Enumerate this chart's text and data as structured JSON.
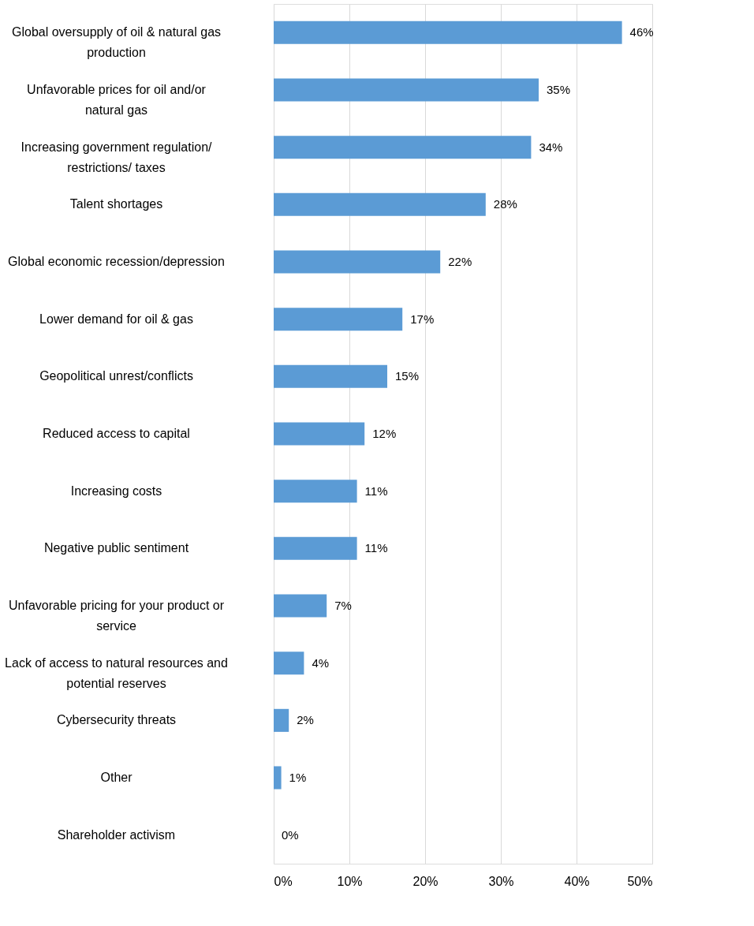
{
  "chart_data": {
    "type": "bar",
    "orientation": "horizontal",
    "categories": [
      "Global oversupply of oil & natural gas production",
      "Unfavorable prices for oil and/or natural gas",
      "Increasing government regulation/ restrictions/ taxes",
      "Talent shortages",
      "Global economic recession/depression",
      "Lower demand for oil & gas",
      "Geopolitical unrest/conflicts",
      "Reduced access to capital",
      "Increasing costs",
      "Negative public sentiment",
      "Unfavorable pricing for your product or service",
      "Lack of access to natural resources and potential reserves",
      "Cybersecurity threats",
      "Other",
      "Shareholder activism"
    ],
    "values": [
      46,
      35,
      34,
      28,
      22,
      17,
      15,
      12,
      11,
      11,
      7,
      4,
      2,
      1,
      0
    ],
    "value_labels": [
      "46%",
      "35%",
      "34%",
      "28%",
      "22%",
      "17%",
      "15%",
      "12%",
      "11%",
      "11%",
      "7%",
      "4%",
      "2%",
      "1%",
      "0%"
    ],
    "color": "#5b9bd5",
    "xlim": [
      0,
      50
    ],
    "xticks": [
      {
        "value": 0,
        "label": "0%"
      },
      {
        "value": 10,
        "label": "10%"
      },
      {
        "value": 20,
        "label": "20%"
      },
      {
        "value": 30,
        "label": "30%"
      },
      {
        "value": 40,
        "label": "40%"
      },
      {
        "value": 50,
        "label": "50%"
      }
    ],
    "grid": "x",
    "legend": false
  }
}
